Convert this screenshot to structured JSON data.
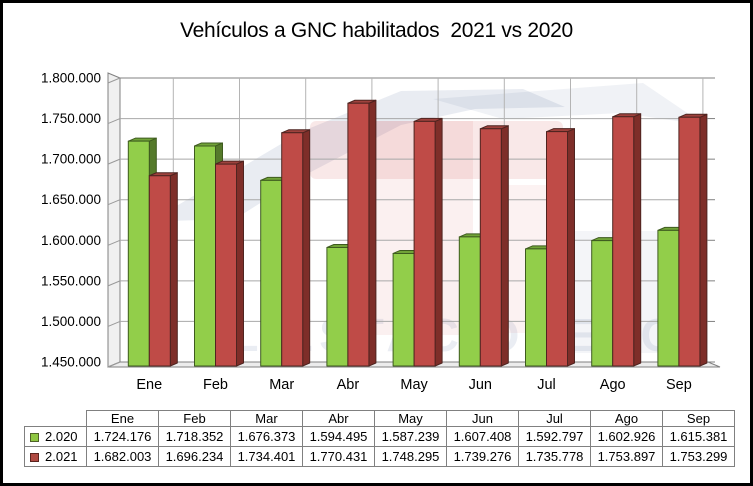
{
  "title": "Vehículos a GNC habilitados  2021 vs 2020",
  "watermark": {
    "text": "EL ESTACIONERO"
  },
  "chart_data": {
    "type": "bar",
    "style": "3d-clustered-column",
    "title": "Vehículos a GNC habilitados  2021 vs 2020",
    "categories": [
      "Ene",
      "Feb",
      "Mar",
      "Abr",
      "May",
      "Jun",
      "Jul",
      "Ago",
      "Sep"
    ],
    "series": [
      {
        "name": "2.020",
        "face_color": "#92CE4A",
        "side_color": "#557A2B",
        "top_color": "#71A338",
        "border_color": "#3E5B1F",
        "values": [
          1724176,
          1718352,
          1676373,
          1594495,
          1587239,
          1607408,
          1592797,
          1602926,
          1615381
        ]
      },
      {
        "name": "2.021",
        "face_color": "#BF4B47",
        "side_color": "#7E2E29",
        "top_color": "#9E423D",
        "border_color": "#4F2420",
        "values": [
          1682003,
          1696234,
          1734401,
          1770431,
          1748295,
          1739276,
          1735778,
          1753897,
          1753299
        ]
      }
    ],
    "ylim": [
      1450000,
      1800000
    ],
    "ytick_step": 50000,
    "ytick_labels": [
      "1.800.000",
      "1.750.000",
      "1.700.000",
      "1.650.000",
      "1.600.000",
      "1.550.000",
      "1.500.000",
      "1.450.000"
    ],
    "xlabel": "",
    "ylabel": "",
    "grid": true,
    "legend_position": "table-left"
  },
  "table": {
    "headers": [
      "Ene",
      "Feb",
      "Mar",
      "Abr",
      "May",
      "Jun",
      "Jul",
      "Ago",
      "Sep"
    ],
    "rows": [
      {
        "label": "2.020",
        "swatch_fill": "#8FC742",
        "swatch_border": "#4F6228",
        "values": [
          "1.724.176",
          "1.718.352",
          "1.676.373",
          "1.594.495",
          "1.587.239",
          "1.607.408",
          "1.592.797",
          "1.602.926",
          "1.615.381"
        ]
      },
      {
        "label": "2.021",
        "swatch_fill": "#B04A42",
        "swatch_border": "#5A241F",
        "values": [
          "1.682.003",
          "1.696.234",
          "1.734.401",
          "1.770.431",
          "1.748.295",
          "1.739.276",
          "1.735.778",
          "1.753.897",
          "1.753.299"
        ]
      }
    ]
  }
}
